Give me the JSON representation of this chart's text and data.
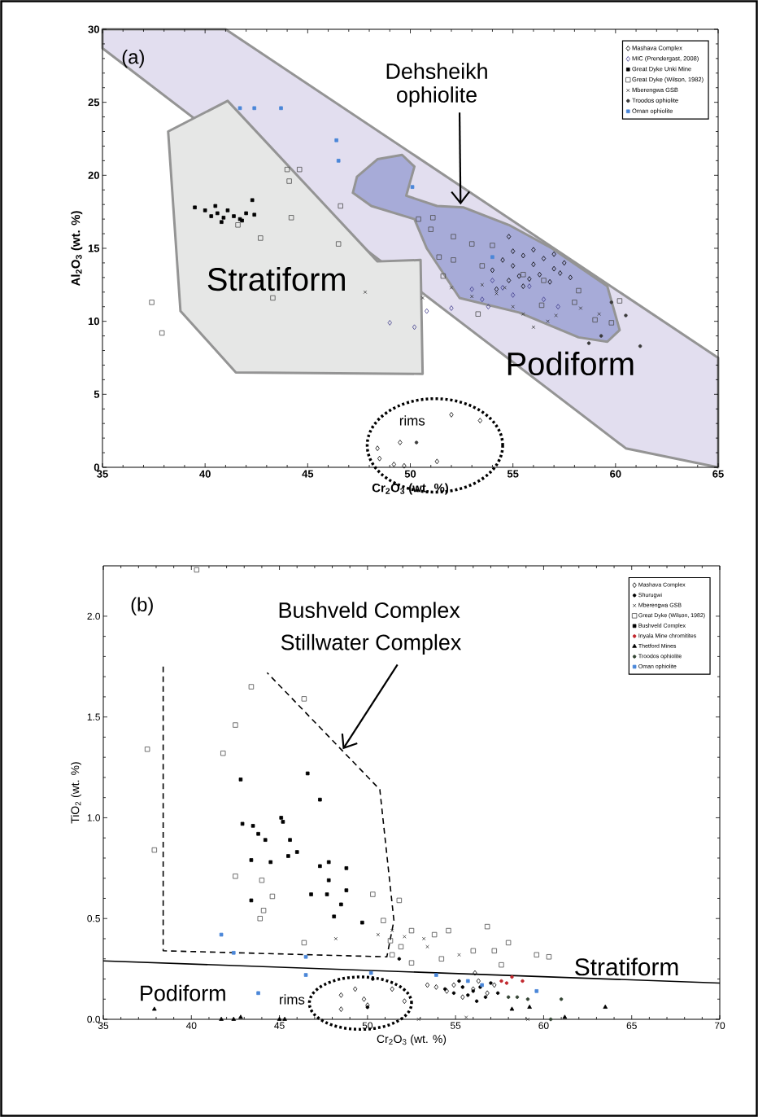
{
  "chart_data": [
    {
      "type": "scatter",
      "xlabel": "Cr$_{2}$O$_{3}$ (wt. %)",
      "ylabel": "Al$_{2}$O$_{3}$ (wt. %)",
      "xlim": [
        35,
        65
      ],
      "xticks": [
        35,
        40,
        45,
        50,
        55,
        60,
        65
      ],
      "ylim": [
        0,
        30
      ],
      "yticks": [
        0,
        5,
        10,
        15,
        20,
        25,
        30
      ],
      "legend": "top right",
      "grid": false,
      "annotations": [
        "(a)",
        {
          "text": "Dehsheikh ophiolite",
          "x": 52.45,
          "y": 18.0
        },
        "Stratiform",
        "Podiform",
        "rims"
      ],
      "series": [
        {
          "type": "area",
          "color": "#e2deef",
          "x": [
            35,
            41,
            65,
            65,
            60.5,
            35
          ],
          "values": [
            30,
            30,
            7.5,
            0,
            1.3,
            28.7
          ]
        },
        {
          "type": "area",
          "color": "#e6e7e6",
          "x": [
            38.2,
            41.1,
            48.4,
            50.5,
            50.6,
            41.5,
            38.8
          ],
          "values": [
            23.0,
            25.1,
            14.1,
            14.2,
            6.4,
            6.5,
            10.7
          ]
        },
        {
          "type": "area",
          "color": "#a7abd8",
          "x": [
            47.4,
            48.4,
            49.6,
            50.2,
            49.8,
            51.3,
            52.6,
            54.8,
            56.9,
            59.6,
            60.2,
            59.6,
            58.2,
            55.3,
            52.4,
            50.8,
            50.2,
            48.1,
            47.2
          ],
          "values": [
            19.9,
            21.1,
            21.4,
            20.6,
            18.6,
            17.9,
            17.8,
            16.6,
            15.0,
            12.4,
            9.4,
            8.6,
            8.9,
            10.6,
            11.6,
            15.0,
            17.0,
            17.9,
            18.8
          ]
        },
        {
          "name": "Mashava Complex",
          "marker": "diamond",
          "color": "#000000",
          "x": [
            48.4,
            49.5,
            52.0,
            53.4,
            48.5,
            49.2,
            49.7,
            51.3,
            54.0,
            54.5,
            55.0,
            55.5,
            56.0,
            56.5,
            57.0,
            57.5,
            54.8,
            55.3,
            55.8,
            56.3,
            56.8,
            57.3,
            55.0,
            56.0,
            57.0,
            54.2,
            55.5,
            57.8,
            54.8
          ],
          "values": [
            1.3,
            1.7,
            3.6,
            3.2,
            0.6,
            0.2,
            0.1,
            0.4,
            13.5,
            14.2,
            13.8,
            14.5,
            13.9,
            14.3,
            13.6,
            14.0,
            12.8,
            13.1,
            12.9,
            13.2,
            12.7,
            13.3,
            14.8,
            14.9,
            14.6,
            12.2,
            12.4,
            13.0,
            15.8
          ]
        },
        {
          "name": "MIC (Prendergast, 2008)",
          "marker": "diamond",
          "color": "#3d3a8c",
          "x": [
            49.0,
            50.2,
            50.8,
            52.0,
            53.0,
            53.5,
            54.0,
            55.0,
            55.8,
            56.5,
            57.2,
            53.8,
            54.5
          ],
          "values": [
            9.9,
            9.6,
            10.7,
            10.9,
            12.2,
            11.5,
            12.8,
            11.8,
            12.4,
            11.5,
            11.0,
            11.0,
            12.3
          ]
        },
        {
          "name": "Great Dyke Unki Mine",
          "marker": "square",
          "color": "#000000",
          "x": [
            39.5,
            40.0,
            40.3,
            40.6,
            40.9,
            41.1,
            41.4,
            41.7,
            42.0,
            42.3,
            42.4,
            41.8,
            40.5,
            40.8
          ],
          "values": [
            17.8,
            17.6,
            17.2,
            17.4,
            17.1,
            17.6,
            17.2,
            17.0,
            17.4,
            18.3,
            17.3,
            16.9,
            17.9,
            16.8
          ]
        },
        {
          "name": "Great Dyke (Wilson, 1982)",
          "marker": "square",
          "color": "#4d4d4d",
          "x": [
            37.4,
            37.9,
            41.6,
            42.7,
            43.3,
            44.0,
            44.6,
            44.1,
            46.6,
            44.2,
            46.5,
            50.4,
            51.1,
            51.0,
            52.1,
            52.1,
            51.4,
            51.6,
            53.3,
            60.2,
            59.8,
            58.2,
            56.4,
            53.0,
            54.0,
            55.5,
            56.5,
            58.0,
            59.0,
            53.5
          ],
          "values": [
            11.3,
            9.2,
            16.6,
            15.7,
            11.6,
            20.4,
            20.4,
            19.6,
            17.9,
            17.1,
            15.3,
            17.0,
            17.1,
            16.3,
            15.8,
            14.2,
            14.4,
            13.1,
            10.5,
            11.4,
            9.9,
            12.1,
            11.1,
            15.3,
            15.2,
            13.2,
            12.8,
            11.3,
            10.1,
            13.8
          ]
        },
        {
          "name": "Mberengwa GSB",
          "marker": "cross",
          "color": "#333333",
          "x": [
            47.8,
            50.6,
            52.0,
            53.0,
            53.5,
            54.2,
            55.0,
            55.5,
            56.0,
            56.7,
            57.1,
            58.3,
            59.2,
            54.6
          ],
          "values": [
            12.0,
            11.6,
            12.3,
            11.7,
            12.5,
            11.9,
            11.0,
            10.5,
            9.6,
            10.0,
            10.4,
            10.9,
            10.5,
            12.3
          ]
        },
        {
          "name": "Troodos ophiolite",
          "marker": "circle",
          "color": "#3a3a3a",
          "x": [
            50.3,
            59.8,
            60.5,
            59.3,
            58.7,
            61.2
          ],
          "values": [
            1.7,
            11.3,
            10.4,
            9.0,
            8.5,
            8.3
          ]
        },
        {
          "name": "Oman ophiolite",
          "marker": "square",
          "color": "#4a86d8",
          "x": [
            41.7,
            42.4,
            43.7,
            46.4,
            46.5,
            50.1,
            54.0
          ],
          "values": [
            24.6,
            24.6,
            24.6,
            22.4,
            21.0,
            19.2,
            14.4
          ]
        }
      ]
    },
    {
      "type": "scatter",
      "xlabel": "Cr$_{2}$O$_{3}$ (wt. %)",
      "ylabel": "TiO$_{2}$ (wt. %)",
      "xlim": [
        35,
        70
      ],
      "xticks": [
        35,
        40,
        45,
        50,
        55,
        60,
        65,
        70
      ],
      "ylim": [
        0,
        2.25
      ],
      "yticks": [
        {
          "value": 0,
          "label": "0.0"
        },
        {
          "value": 0.5,
          "label": "0.5"
        },
        {
          "value": 1.0,
          "label": "1.0"
        },
        {
          "value": 1.5,
          "label": "1.5"
        },
        {
          "value": 2.0,
          "label": "2.0"
        }
      ],
      "legend": "top right",
      "grid": false,
      "annotations": [
        "(b)",
        "Bushveld Complex",
        {
          "text": "Stillwater Complex",
          "x": 48.6,
          "y": 1.34
        },
        "Stratiform",
        "Podiform",
        "rims"
      ],
      "series": [
        {
          "type": "line",
          "color": "#000000",
          "line_style": "solid",
          "x": [
            35,
            70
          ],
          "values": [
            0.29,
            0.18
          ]
        },
        {
          "type": "line",
          "color": "#000000",
          "line_style": "dashed",
          "x": [
            38.4,
            38.4,
            51.1,
            51.5,
            50.7,
            44.3
          ],
          "values": [
            1.75,
            0.34,
            0.31,
            0.49,
            1.14,
            1.72
          ]
        },
        {
          "name": "Mashava Complex",
          "marker": "diamond",
          "color": "#000000",
          "x": [
            48.5,
            49.3,
            49.8,
            50.0,
            48.5,
            51.4,
            52.1,
            53.4,
            53.9,
            54.5,
            54.9,
            55.4,
            56.0,
            56.3,
            56.8,
            57.2,
            56.1
          ],
          "values": [
            0.12,
            0.15,
            0.1,
            0.07,
            0.05,
            0.15,
            0.09,
            0.17,
            0.16,
            0.14,
            0.17,
            0.11,
            0.15,
            0.19,
            0.13,
            0.17,
            0.23
          ]
        },
        {
          "name": "Shurugwi",
          "marker": "circle",
          "color": "#000000",
          "x": [
            54.4,
            54.9,
            55.4,
            55.7,
            56.0,
            56.4,
            56.7,
            57.0,
            57.4,
            56.2,
            55.2,
            51.8,
            50.3,
            50.0
          ],
          "values": [
            0.15,
            0.13,
            0.16,
            0.12,
            0.14,
            0.16,
            0.11,
            0.18,
            0.13,
            0.09,
            0.19,
            0.3,
            0.2,
            0.06
          ]
        },
        {
          "name": "Mberengwa GSB",
          "marker": "cross",
          "color": "#333333",
          "x": [
            48.2,
            50.6,
            51.4,
            52.1,
            53.2,
            53.4,
            55.2,
            52.9,
            55.6,
            59.1
          ],
          "values": [
            0.4,
            0.42,
            0.44,
            0.41,
            0.4,
            0.36,
            0.32,
            0.0,
            0.01,
            0.0
          ]
        },
        {
          "name": "Great Dyke (Wilson, 1982)",
          "marker": "square",
          "color": "#4d4d4d",
          "x": [
            40.3,
            43.4,
            46.4,
            42.5,
            37.5,
            41.8,
            37.9,
            42.5,
            44.0,
            44.6,
            44.1,
            43.9,
            46.4,
            50.3,
            51.8,
            50.9,
            51.3,
            51.9,
            52.5,
            53.8,
            54.6,
            56.8,
            58.0,
            59.6,
            60.3,
            57.2,
            56.0,
            54.2,
            57.6,
            52.5,
            51.4
          ],
          "values": [
            2.23,
            1.65,
            1.59,
            1.46,
            1.34,
            1.32,
            0.84,
            0.71,
            0.69,
            0.61,
            0.54,
            0.5,
            0.38,
            0.62,
            0.59,
            0.49,
            0.39,
            0.36,
            0.44,
            0.42,
            0.44,
            0.46,
            0.38,
            0.32,
            0.31,
            0.34,
            0.34,
            0.3,
            0.27,
            0.28,
            0.32
          ]
        },
        {
          "name": "Bushveld Complex",
          "marker": "square",
          "color": "#000000",
          "x": [
            42.8,
            46.6,
            47.3,
            42.9,
            43.5,
            45.1,
            45.2,
            43.8,
            44.2,
            45.6,
            43.4,
            44.5,
            45.5,
            46.0,
            43.4,
            47.3,
            47.8,
            48.8,
            47.8,
            47.7,
            48.8,
            46.8,
            48.5,
            48.1,
            49.7
          ],
          "values": [
            1.19,
            1.22,
            1.09,
            0.97,
            0.96,
            1.0,
            0.98,
            0.92,
            0.89,
            0.89,
            0.79,
            0.78,
            0.81,
            0.83,
            0.59,
            0.76,
            0.78,
            0.75,
            0.69,
            0.62,
            0.64,
            0.62,
            0.57,
            0.51,
            0.48
          ]
        },
        {
          "name": "Inyala Mine chromitites",
          "marker": "circle",
          "color": "#c1272d",
          "x": [
            57.6,
            57.9,
            58.2,
            58.8
          ],
          "values": [
            0.19,
            0.18,
            0.21,
            0.19
          ]
        },
        {
          "name": "Thetford Mines",
          "marker": "triangle",
          "color": "#000000",
          "x": [
            37.9,
            41.7,
            42.4,
            42.8,
            45.0,
            45.3,
            58.2,
            59.2,
            61.2,
            63.5
          ],
          "values": [
            0.05,
            0.0,
            0.0,
            0.01,
            0.0,
            0.0,
            0.05,
            0.06,
            0.01,
            0.06
          ]
        },
        {
          "name": "Troodos ophiolite",
          "marker": "circle",
          "color": "#334433",
          "x": [
            58.0,
            58.5,
            59.1,
            61.0,
            60.4
          ],
          "values": [
            0.11,
            0.11,
            0.1,
            0.1,
            0.0
          ]
        },
        {
          "name": "Oman ophiolite",
          "marker": "square",
          "color": "#4a86d8",
          "x": [
            41.7,
            42.4,
            46.5,
            46.5,
            43.8,
            50.2,
            55.7,
            56.5,
            59.6,
            53.9
          ],
          "values": [
            0.42,
            0.33,
            0.31,
            0.22,
            0.13,
            0.23,
            0.19,
            0.17,
            0.14,
            0.22
          ]
        }
      ]
    }
  ]
}
